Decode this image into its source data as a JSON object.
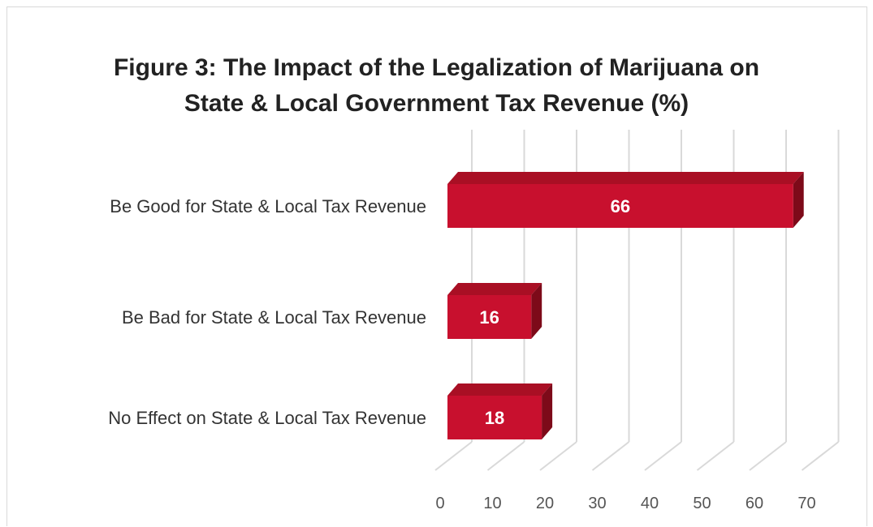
{
  "chart_data": {
    "type": "bar",
    "orientation": "horizontal",
    "style": "3d",
    "title": "Figure 3: The Impact of the Legalization of Marijuana on\nState & Local Government Tax Revenue (%)",
    "categories": [
      "Be Good for State & Local Tax Revenue",
      "Be Bad for State & Local Tax Revenue",
      "No Effect on State & Local Tax Revenue"
    ],
    "values": [
      66,
      16,
      18
    ],
    "data_labels": [
      "66",
      "16",
      "18"
    ],
    "xlim": [
      0,
      70
    ],
    "ticks": [
      0,
      10,
      20,
      30,
      40,
      50,
      60,
      70
    ],
    "tick_labels": [
      "0",
      "10",
      "20",
      "30",
      "40",
      "50",
      "60",
      "70"
    ],
    "grid": true,
    "legend": "none",
    "colors": {
      "bar_front": "#c8102e",
      "bar_top": "#a90f24",
      "bar_side": "#7d0a19",
      "grid": "#d9d9d9"
    }
  }
}
